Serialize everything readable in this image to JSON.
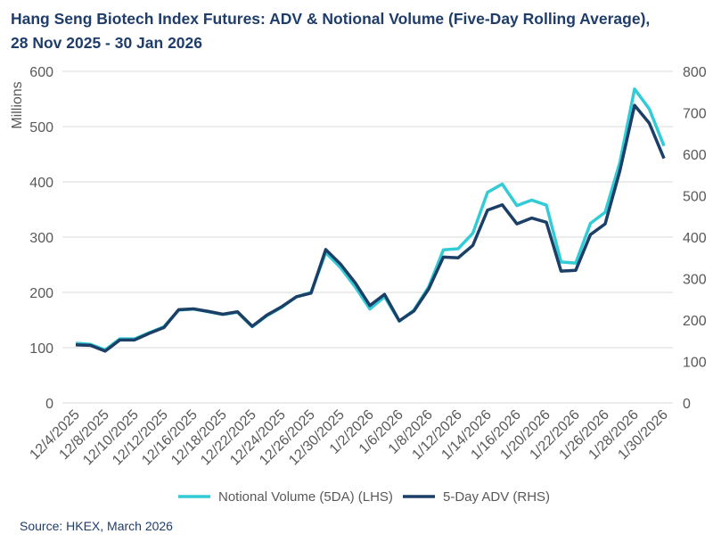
{
  "title_lines": [
    "Hang Seng Biotech Index Futures: ADV & Notional Volume (Five-Day Rolling Average),",
    "28 Nov 2025 - 30 Jan 2026"
  ],
  "source": "Source: HKEX, March 2026",
  "chart_data": {
    "type": "line",
    "title": "Hang Seng Biotech Index Futures: ADV & Notional Volume (Five-Day Rolling Average), 28 Nov 2025 - 30 Jan 2026",
    "ylabel": "Millions",
    "ylim": [
      0,
      600
    ],
    "y2lim": [
      0,
      800
    ],
    "yticks": [
      "0",
      "100",
      "200",
      "300",
      "400",
      "500",
      "600"
    ],
    "y2ticks": [
      "0",
      "100",
      "200",
      "300",
      "400",
      "500",
      "600",
      "700",
      "800"
    ],
    "grid": true,
    "legend_position": "bottom",
    "categories": [
      "12/4/2025",
      "12/5/2025",
      "12/8/2025",
      "12/9/2025",
      "12/10/2025",
      "12/11/2025",
      "12/12/2025",
      "12/15/2025",
      "12/16/2025",
      "12/17/2025",
      "12/18/2025",
      "12/19/2025",
      "12/22/2025",
      "12/23/2025",
      "12/24/2025",
      "12/25/2025",
      "12/26/2025",
      "12/29/2025",
      "12/30/2025",
      "12/31/2025",
      "1/2/2026",
      "1/5/2026",
      "1/6/2026",
      "1/7/2026",
      "1/8/2026",
      "1/9/2026",
      "1/12/2026",
      "1/13/2026",
      "1/14/2026",
      "1/15/2026",
      "1/16/2026",
      "1/19/2026",
      "1/20/2026",
      "1/21/2026",
      "1/22/2026",
      "1/23/2026",
      "1/26/2026",
      "1/27/2026",
      "1/28/2026",
      "1/29/2026",
      "1/30/2026"
    ],
    "xtick_labels": [
      "12/4/2025",
      "12/8/2025",
      "12/10/2025",
      "12/12/2025",
      "12/16/2025",
      "12/18/2025",
      "12/22/2025",
      "12/24/2025",
      "12/26/2025",
      "12/30/2025",
      "1/2/2026",
      "1/6/2026",
      "1/8/2026",
      "1/12/2026",
      "1/14/2026",
      "1/16/2026",
      "1/20/2026",
      "1/22/2026",
      "1/26/2026",
      "1/28/2026",
      "1/30/2026"
    ],
    "series": [
      {
        "name": "Notional Volume (5DA) (LHS)",
        "axis": "left",
        "color": "#33ccd6",
        "values": [
          108,
          106,
          96,
          116,
          116,
          127,
          138,
          168,
          170,
          165,
          160,
          164,
          138,
          158,
          173,
          192,
          200,
          272,
          245,
          210,
          170,
          192,
          148,
          168,
          210,
          277,
          279,
          307,
          381,
          396,
          357,
          367,
          358,
          255,
          253,
          325,
          345,
          435,
          568,
          532,
          465
        ]
      },
      {
        "name": "5-Day ADV (RHS)",
        "axis": "right",
        "color": "#1b3f66",
        "values": [
          140,
          139,
          125,
          152,
          152,
          168,
          182,
          225,
          227,
          221,
          214,
          220,
          185,
          212,
          232,
          256,
          265,
          370,
          335,
          290,
          235,
          262,
          198,
          222,
          275,
          352,
          350,
          380,
          465,
          478,
          432,
          446,
          436,
          318,
          320,
          406,
          432,
          560,
          718,
          675,
          590
        ]
      }
    ]
  }
}
